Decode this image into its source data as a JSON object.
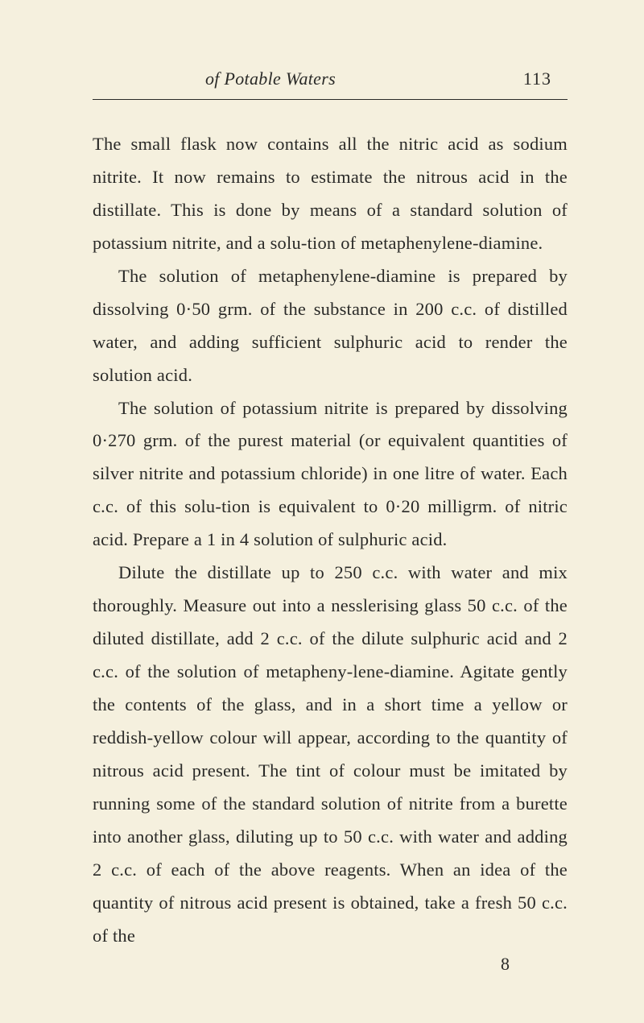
{
  "header": {
    "title": "of Potable Waters",
    "page_number": "113"
  },
  "paragraphs": {
    "p1": "The small flask now contains all the nitric acid as sodium nitrite. It now remains to estimate the nitrous acid in the distillate. This is done by means of a standard solution of potassium nitrite, and a solu-tion of metaphenylene-diamine.",
    "p2": "The solution of metaphenylene-diamine is prepared by dissolving 0·50 grm. of the substance in 200 c.c. of distilled water, and adding sufficient sulphuric acid to render the solution acid.",
    "p3": "The solution of potassium nitrite is prepared by dissolving 0·270 grm. of the purest material (or equivalent quantities of silver nitrite and potassium chloride) in one litre of water. Each c.c. of this solu-tion is equivalent to 0·20 milligrm. of nitric acid. Prepare a 1 in 4 solution of sulphuric acid.",
    "p4": "Dilute the distillate up to 250 c.c. with water and mix thoroughly. Measure out into a nesslerising glass 50 c.c. of the diluted distillate, add 2 c.c. of the dilute sulphuric acid and 2 c.c. of the solution of metapheny-lene-diamine. Agitate gently the contents of the glass, and in a short time a yellow or reddish-yellow colour will appear, according to the quantity of nitrous acid present. The tint of colour must be imitated by running some of the standard solution of nitrite from a burette into another glass, diluting up to 50 c.c. with water and adding 2 c.c. of each of the above reagents. When an idea of the quantity of nitrous acid present is obtained, take a fresh 50 c.c. of the"
  },
  "footer": {
    "signature_number": "8"
  },
  "styles": {
    "background_color": "#f5f0de",
    "text_color": "#2a2a28",
    "body_font_size": 22.5,
    "header_font_size": 22,
    "line_height": 1.82
  }
}
